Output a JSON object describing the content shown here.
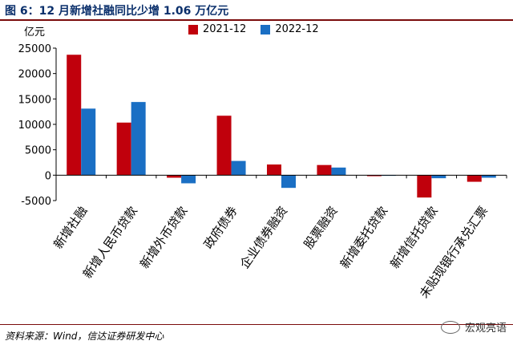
{
  "header": {
    "title": "图 6：12 月新增社融同比少增 1.06 万亿元"
  },
  "footer": {
    "source": "资料来源：Wind，信达证券研发中心",
    "watermark": "宏观亮语",
    "watermark_icon": "wechat-icon"
  },
  "chart_data": {
    "type": "bar",
    "ylabel": "亿元",
    "ylim": [
      -5000,
      25000
    ],
    "yticks": [
      -5000,
      0,
      5000,
      10000,
      15000,
      20000,
      25000
    ],
    "ytick_labels": [
      "-5000",
      "0",
      "5000",
      "10000",
      "15000",
      "20000",
      "25000"
    ],
    "legend_position": "top",
    "categories": [
      "新增社融",
      "新增人民币贷款",
      "新增外币贷款",
      "政府债券",
      "企业债券融资",
      "股票融资",
      "新增委托贷款",
      "新增信托贷款",
      "未贴现银行承兑汇票"
    ],
    "series": [
      {
        "name": "2021-12",
        "color": "#c0000c",
        "values": [
          23700,
          10350,
          -500,
          11700,
          2100,
          2000,
          -200,
          -4400,
          -1300
        ]
      },
      {
        "name": "2022-12",
        "color": "#1a6fc4",
        "values": [
          13100,
          14400,
          -1600,
          2800,
          -2500,
          1500,
          0,
          -600,
          -500
        ]
      }
    ]
  }
}
